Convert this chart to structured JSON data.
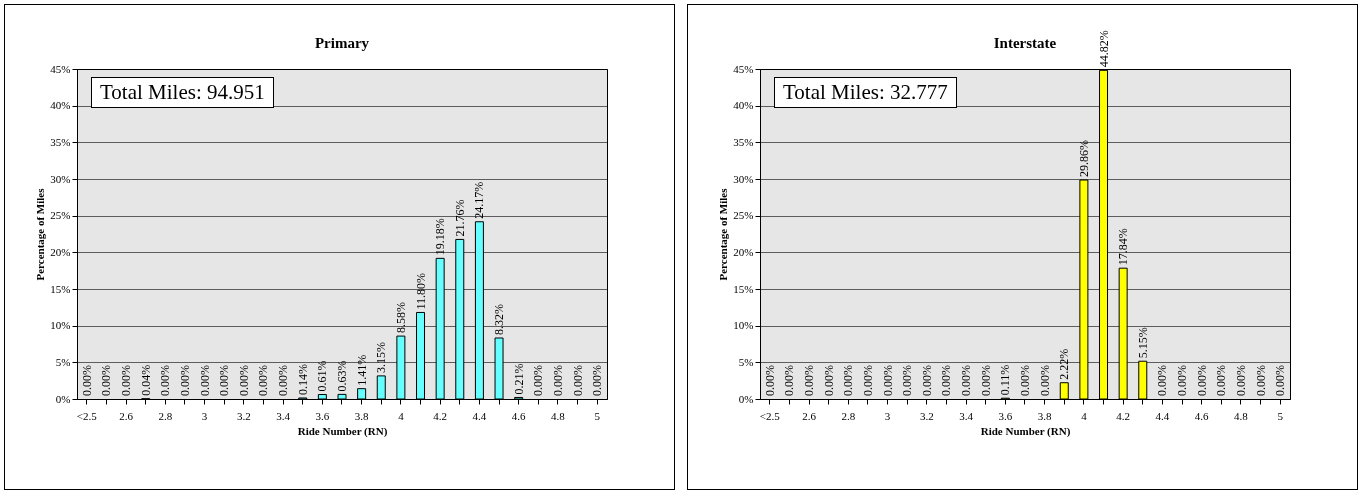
{
  "chart_data": [
    {
      "type": "bar",
      "title": "Primary",
      "xlabel": "Ride Number (RN)",
      "ylabel": "Percentage of Miles",
      "categories": [
        "<2.5",
        null,
        "2.6",
        null,
        "2.8",
        null,
        "3",
        null,
        "3.2",
        null,
        "3.4",
        null,
        "3.6",
        null,
        "3.8",
        null,
        "4",
        null,
        "4.2",
        null,
        "4.4",
        null,
        "4.6",
        null,
        "4.8",
        null,
        "5"
      ],
      "values": [
        0,
        0,
        0,
        0.04,
        0,
        0,
        0,
        0,
        0,
        0,
        0,
        0.14,
        0.61,
        0.63,
        1.41,
        3.15,
        8.58,
        11.8,
        19.18,
        21.76,
        24.17,
        8.32,
        0.21,
        0,
        0,
        0,
        0
      ],
      "value_labels": [
        "0.00%",
        "0.00%",
        "0.00%",
        "0.04%",
        "0.00%",
        "0.00%",
        "0.00%",
        "0.00%",
        "0.00%",
        "0.00%",
        "0.00%",
        "0.14%",
        "0.61%",
        "0.63%",
        "1.41%",
        "3.15%",
        "8.58%",
        "11.80%",
        "19.18%",
        "21.76%",
        "24.17%",
        "8.32%",
        "0.21%",
        "0.00%",
        "0.00%",
        "0.00%",
        "0.00%"
      ],
      "color": "#66ffff",
      "ylim": [
        0,
        45
      ],
      "yticks": [
        {
          "value": 0,
          "label": "0%"
        },
        {
          "value": 5,
          "label": "5%"
        },
        {
          "value": 10,
          "label": "10%"
        },
        {
          "value": 15,
          "label": "15%"
        },
        {
          "value": 20,
          "label": "20%"
        },
        {
          "value": 25,
          "label": "25%"
        },
        {
          "value": 30,
          "label": "30%"
        },
        {
          "value": 35,
          "label": "35%"
        },
        {
          "value": 40,
          "label": "40%"
        },
        {
          "value": 45,
          "label": "45%"
        }
      ],
      "grid": "y",
      "annotations": [
        "Total Miles: 94.951"
      ]
    },
    {
      "type": "bar",
      "title": "Interstate",
      "xlabel": "Ride Number (RN)",
      "ylabel": "Percentage of Miles",
      "categories": [
        "<2.5",
        null,
        "2.6",
        null,
        "2.8",
        null,
        "3",
        null,
        "3.2",
        null,
        "3.4",
        null,
        "3.6",
        null,
        "3.8",
        null,
        "4",
        null,
        "4.2",
        null,
        "4.4",
        null,
        "4.6",
        null,
        "4.8",
        null,
        "5"
      ],
      "values": [
        0,
        0,
        0,
        0,
        0,
        0,
        0,
        0,
        0,
        0,
        0,
        0,
        0.11,
        0,
        0,
        2.22,
        29.86,
        44.82,
        17.84,
        5.15,
        0,
        0,
        0,
        0,
        0,
        0,
        0
      ],
      "value_labels": [
        "0.00%",
        "0.00%",
        "0.00%",
        "0.00%",
        "0.00%",
        "0.00%",
        "0.00%",
        "0.00%",
        "0.00%",
        "0.00%",
        "0.00%",
        "0.00%",
        "0.11%",
        "0.00%",
        "0.00%",
        "2.22%",
        "29.86%",
        "44.82%",
        "17.84%",
        "5.15%",
        "0.00%",
        "0.00%",
        "0.00%",
        "0.00%",
        "0.00%",
        "0.00%",
        "0.00%"
      ],
      "color": "#ffff00",
      "ylim": [
        0,
        45
      ],
      "yticks": [
        {
          "value": 0,
          "label": "0%"
        },
        {
          "value": 5,
          "label": "5%"
        },
        {
          "value": 10,
          "label": "10%"
        },
        {
          "value": 15,
          "label": "15%"
        },
        {
          "value": 20,
          "label": "20%"
        },
        {
          "value": 25,
          "label": "25%"
        },
        {
          "value": 30,
          "label": "30%"
        },
        {
          "value": 35,
          "label": "35%"
        },
        {
          "value": 40,
          "label": "40%"
        },
        {
          "value": 45,
          "label": "45%"
        }
      ],
      "grid": "y",
      "annotations": [
        "Total Miles: 32.777"
      ]
    }
  ]
}
